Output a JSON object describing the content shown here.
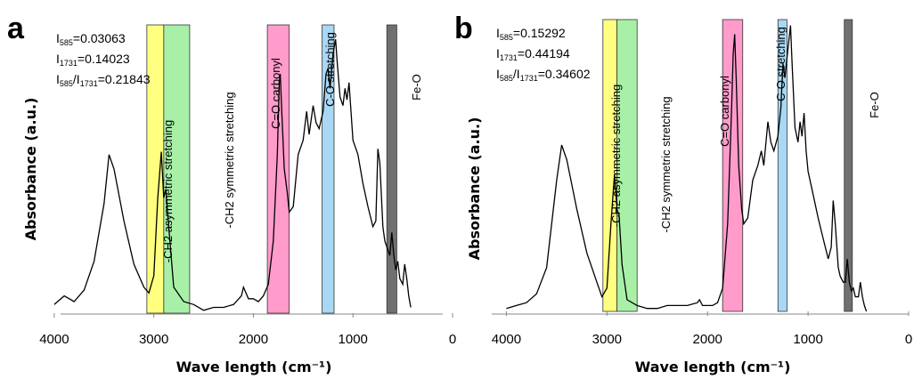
{
  "chart_data": [
    {
      "panel": "a",
      "type": "line",
      "xlabel": "Wave length (cm⁻¹)",
      "ylabel": "Absorbance (a.u.)",
      "xlim": [
        4500,
        0
      ],
      "xticks": [
        4000,
        3000,
        2000,
        1000,
        0
      ],
      "annotations": [
        {
          "base": "I",
          "sub": "585",
          "value": "=0.03063"
        },
        {
          "base": "I",
          "sub": "1731",
          "value": "=0.14023"
        },
        {
          "base": "I",
          "sub": "585",
          "mid": "/I",
          "sub2": "1731",
          "value": "=0.21843"
        }
      ],
      "bands": [
        {
          "label": "-CH2 asymmetric stretching",
          "from": 3070,
          "to": 2900,
          "color": "#ffff80"
        },
        {
          "label": "-CH2 symmetric stretching",
          "from": 2900,
          "to": 2640,
          "color": "#a8f0a8"
        },
        {
          "label": "C=O carbonyl",
          "from": 1860,
          "to": 1640,
          "color": "#ff9ccc"
        },
        {
          "label": "C-O stretching",
          "from": 1310,
          "to": 1190,
          "color": "#a8d8f4"
        },
        {
          "label": "Fe-O",
          "from": 660,
          "to": 560,
          "color": "#707070"
        }
      ],
      "spectrum": [
        [
          4000,
          0.03
        ],
        [
          3900,
          0.06
        ],
        [
          3800,
          0.04
        ],
        [
          3700,
          0.08
        ],
        [
          3600,
          0.18
        ],
        [
          3500,
          0.38
        ],
        [
          3450,
          0.55
        ],
        [
          3400,
          0.5
        ],
        [
          3300,
          0.32
        ],
        [
          3200,
          0.17
        ],
        [
          3100,
          0.09
        ],
        [
          3050,
          0.07
        ],
        [
          3000,
          0.13
        ],
        [
          2960,
          0.4
        ],
        [
          2925,
          0.56
        ],
        [
          2900,
          0.4
        ],
        [
          2880,
          0.43
        ],
        [
          2850,
          0.3
        ],
        [
          2800,
          0.09
        ],
        [
          2700,
          0.04
        ],
        [
          2600,
          0.03
        ],
        [
          2500,
          0.01
        ],
        [
          2400,
          0.02
        ],
        [
          2300,
          0.02
        ],
        [
          2200,
          0.03
        ],
        [
          2120,
          0.06
        ],
        [
          2100,
          0.09
        ],
        [
          2050,
          0.05
        ],
        [
          2000,
          0.05
        ],
        [
          1950,
          0.04
        ],
        [
          1900,
          0.06
        ],
        [
          1850,
          0.1
        ],
        [
          1800,
          0.25
        ],
        [
          1760,
          0.55
        ],
        [
          1740,
          0.8
        ],
        [
          1730,
          0.83
        ],
        [
          1715,
          0.7
        ],
        [
          1690,
          0.5
        ],
        [
          1660,
          0.42
        ],
        [
          1640,
          0.35
        ],
        [
          1600,
          0.37
        ],
        [
          1550,
          0.55
        ],
        [
          1500,
          0.6
        ],
        [
          1465,
          0.7
        ],
        [
          1440,
          0.62
        ],
        [
          1400,
          0.72
        ],
        [
          1370,
          0.66
        ],
        [
          1340,
          0.64
        ],
        [
          1300,
          0.7
        ],
        [
          1270,
          0.83
        ],
        [
          1250,
          0.85
        ],
        [
          1230,
          0.78
        ],
        [
          1200,
          0.9
        ],
        [
          1175,
          0.95
        ],
        [
          1160,
          0.88
        ],
        [
          1130,
          0.75
        ],
        [
          1100,
          0.72
        ],
        [
          1080,
          0.78
        ],
        [
          1060,
          0.74
        ],
        [
          1040,
          0.8
        ],
        [
          1020,
          0.7
        ],
        [
          1000,
          0.6
        ],
        [
          950,
          0.55
        ],
        [
          900,
          0.45
        ],
        [
          850,
          0.37
        ],
        [
          800,
          0.3
        ],
        [
          770,
          0.32
        ],
        [
          750,
          0.57
        ],
        [
          730,
          0.52
        ],
        [
          700,
          0.3
        ],
        [
          680,
          0.25
        ],
        [
          650,
          0.22
        ],
        [
          630,
          0.2
        ],
        [
          610,
          0.28
        ],
        [
          590,
          0.2
        ],
        [
          570,
          0.15
        ],
        [
          550,
          0.18
        ],
        [
          530,
          0.12
        ],
        [
          500,
          0.1
        ],
        [
          480,
          0.17
        ],
        [
          460,
          0.12
        ],
        [
          440,
          0.06
        ],
        [
          420,
          0.02
        ]
      ]
    },
    {
      "panel": "b",
      "type": "line",
      "xlabel": "Wave length (cm⁻¹)",
      "ylabel": "Absorbance (a.u.)",
      "xlim": [
        4500,
        0
      ],
      "xticks": [
        4000,
        3000,
        2000,
        1000,
        0
      ],
      "annotations": [
        {
          "base": "I",
          "sub": "585",
          "value": "=0.15292"
        },
        {
          "base": "I",
          "sub": "1731",
          "value": "=0.44194"
        },
        {
          "base": "I",
          "sub": "585",
          "mid": "/I",
          "sub2": "1731",
          "value": "=0.34602"
        }
      ],
      "bands": [
        {
          "label": "-CH2 asymmetric stretching",
          "from": 3040,
          "to": 2900,
          "color": "#ffff80"
        },
        {
          "label": "-CH2 symmetric stretching",
          "from": 2900,
          "to": 2700,
          "color": "#a8f0a8"
        },
        {
          "label": "C=O carbonyl",
          "from": 1850,
          "to": 1650,
          "color": "#ff9ccc"
        },
        {
          "label": "C-O stretching",
          "from": 1300,
          "to": 1210,
          "color": "#a8d8f4"
        },
        {
          "label": "Fe-O",
          "from": 640,
          "to": 560,
          "color": "#707070"
        }
      ],
      "spectrum": [
        [
          4000,
          0.01
        ],
        [
          3900,
          0.02
        ],
        [
          3800,
          0.03
        ],
        [
          3700,
          0.06
        ],
        [
          3600,
          0.15
        ],
        [
          3500,
          0.45
        ],
        [
          3450,
          0.57
        ],
        [
          3400,
          0.52
        ],
        [
          3300,
          0.35
        ],
        [
          3200,
          0.2
        ],
        [
          3100,
          0.1
        ],
        [
          3050,
          0.05
        ],
        [
          3000,
          0.08
        ],
        [
          2960,
          0.3
        ],
        [
          2925,
          0.47
        ],
        [
          2900,
          0.35
        ],
        [
          2880,
          0.33
        ],
        [
          2850,
          0.16
        ],
        [
          2800,
          0.04
        ],
        [
          2700,
          0.02
        ],
        [
          2600,
          0.01
        ],
        [
          2500,
          0.01
        ],
        [
          2400,
          0.02
        ],
        [
          2300,
          0.02
        ],
        [
          2200,
          0.02
        ],
        [
          2100,
          0.03
        ],
        [
          2080,
          0.04
        ],
        [
          2050,
          0.02
        ],
        [
          2000,
          0.02
        ],
        [
          1950,
          0.02
        ],
        [
          1900,
          0.03
        ],
        [
          1850,
          0.08
        ],
        [
          1800,
          0.3
        ],
        [
          1760,
          0.7
        ],
        [
          1745,
          0.88
        ],
        [
          1730,
          0.95
        ],
        [
          1715,
          0.8
        ],
        [
          1690,
          0.5
        ],
        [
          1660,
          0.35
        ],
        [
          1640,
          0.3
        ],
        [
          1600,
          0.32
        ],
        [
          1550,
          0.45
        ],
        [
          1500,
          0.5
        ],
        [
          1465,
          0.55
        ],
        [
          1440,
          0.5
        ],
        [
          1400,
          0.65
        ],
        [
          1370,
          0.58
        ],
        [
          1340,
          0.55
        ],
        [
          1300,
          0.6
        ],
        [
          1270,
          0.7
        ],
        [
          1250,
          0.85
        ],
        [
          1230,
          0.8
        ],
        [
          1200,
          0.9
        ],
        [
          1175,
          0.98
        ],
        [
          1160,
          0.86
        ],
        [
          1130,
          0.63
        ],
        [
          1100,
          0.58
        ],
        [
          1080,
          0.65
        ],
        [
          1060,
          0.6
        ],
        [
          1040,
          0.68
        ],
        [
          1020,
          0.55
        ],
        [
          1000,
          0.48
        ],
        [
          950,
          0.4
        ],
        [
          900,
          0.32
        ],
        [
          850,
          0.25
        ],
        [
          800,
          0.18
        ],
        [
          770,
          0.22
        ],
        [
          750,
          0.38
        ],
        [
          730,
          0.3
        ],
        [
          700,
          0.15
        ],
        [
          680,
          0.12
        ],
        [
          650,
          0.1
        ],
        [
          630,
          0.1
        ],
        [
          610,
          0.18
        ],
        [
          590,
          0.1
        ],
        [
          570,
          0.07
        ],
        [
          550,
          0.08
        ],
        [
          530,
          0.05
        ],
        [
          500,
          0.05
        ],
        [
          480,
          0.1
        ],
        [
          460,
          0.05
        ],
        [
          440,
          0.02
        ],
        [
          420,
          0.0
        ]
      ]
    }
  ]
}
